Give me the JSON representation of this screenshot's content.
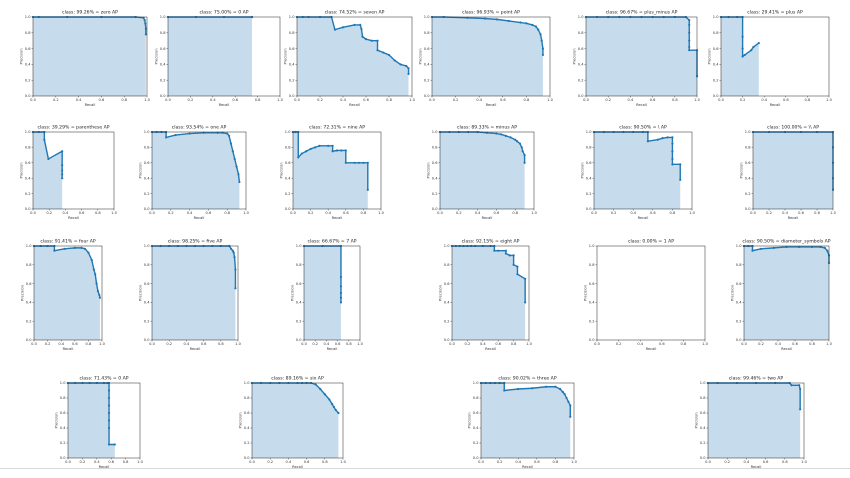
{
  "charts_page": {
    "xlabel": "Recall",
    "ylabel": "Precision"
  },
  "chart_data": [
    {
      "type": "line",
      "title": "class: 99.26% = zero AP",
      "xlabel": "Recall",
      "ylabel": "Precision",
      "xlim": [
        0,
        1
      ],
      "ylim": [
        0,
        1
      ],
      "series": [
        {
          "x": [
            0,
            0.05,
            0.3,
            0.6,
            0.9,
            0.97,
            0.98,
            0.985,
            0.99,
            0.99
          ],
          "y": [
            1,
            1,
            1,
            1,
            1,
            0.99,
            0.96,
            0.92,
            0.85,
            0.78
          ]
        }
      ]
    },
    {
      "type": "line",
      "title": "class: 75.00% = 0 AP",
      "xlabel": "Recall",
      "ylabel": "Precision",
      "xlim": [
        0,
        1
      ],
      "ylim": [
        0,
        1
      ],
      "series": [
        {
          "x": [
            0,
            0.25,
            0.5,
            0.75,
            0.75
          ],
          "y": [
            1,
            1,
            1,
            1,
            1
          ]
        }
      ]
    },
    {
      "type": "line",
      "title": "class: 74.52% = seven AP",
      "xlabel": "Recall",
      "ylabel": "Precision",
      "xlim": [
        0,
        1
      ],
      "ylim": [
        0,
        1
      ],
      "series": [
        {
          "x": [
            0,
            0.05,
            0.1,
            0.2,
            0.3,
            0.33,
            0.4,
            0.5,
            0.55,
            0.56,
            0.57,
            0.6,
            0.65,
            0.7,
            0.7,
            0.75,
            0.8,
            0.85,
            0.9,
            0.95,
            0.97,
            0.97
          ],
          "y": [
            1,
            1,
            1,
            1,
            1,
            0.84,
            0.87,
            0.9,
            0.9,
            0.85,
            0.75,
            0.72,
            0.7,
            0.7,
            0.58,
            0.55,
            0.52,
            0.45,
            0.4,
            0.38,
            0.35,
            0.28
          ]
        }
      ]
    },
    {
      "type": "line",
      "title": "class: 96.93% = point AP",
      "xlabel": "Recall",
      "ylabel": "Precision",
      "xlim": [
        0,
        1
      ],
      "ylim": [
        0,
        1
      ],
      "series": [
        {
          "x": [
            0,
            0.1,
            0.3,
            0.45,
            0.55,
            0.65,
            0.75,
            0.8,
            0.85,
            0.88,
            0.9,
            0.92,
            0.93,
            0.94,
            0.94
          ],
          "y": [
            1,
            1,
            0.99,
            0.98,
            0.97,
            0.95,
            0.93,
            0.92,
            0.9,
            0.88,
            0.84,
            0.78,
            0.7,
            0.6,
            0.52
          ]
        }
      ]
    },
    {
      "type": "line",
      "title": "class: 96.67% = plus_minus AP",
      "xlabel": "Recall",
      "ylabel": "Precision",
      "xlim": [
        0,
        1
      ],
      "ylim": [
        0,
        1
      ],
      "series": [
        {
          "x": [
            0,
            0.1,
            0.2,
            0.3,
            0.4,
            0.5,
            0.6,
            0.7,
            0.8,
            0.9,
            0.93,
            0.93,
            0.93,
            0.93,
            0.93,
            0.93,
            1.0,
            1.0
          ],
          "y": [
            1,
            1,
            1,
            1,
            1,
            1,
            1,
            1,
            1,
            1,
            0.96,
            0.9,
            0.8,
            0.7,
            0.62,
            0.58,
            0.58,
            0.25
          ]
        }
      ]
    },
    {
      "type": "line",
      "title": "class: 29.41% = plus AP",
      "xlabel": "Recall",
      "ylabel": "Precision",
      "xlim": [
        0,
        1
      ],
      "ylim": [
        0,
        1
      ],
      "series": [
        {
          "x": [
            0,
            0.07,
            0.15,
            0.2,
            0.2,
            0.2,
            0.2,
            0.22,
            0.28,
            0.3,
            0.35
          ],
          "y": [
            1,
            1,
            1,
            1,
            0.75,
            0.6,
            0.5,
            0.52,
            0.58,
            0.62,
            0.67
          ]
        }
      ]
    },
    {
      "type": "line",
      "title": "class: 39.29% = parenthese AP",
      "xlabel": "Recall",
      "ylabel": "Precision",
      "xlim": [
        0,
        1
      ],
      "ylim": [
        0,
        1
      ],
      "series": [
        {
          "x": [
            0,
            0.07,
            0.14,
            0.14,
            0.19,
            0.36,
            0.36,
            0.36,
            0.36,
            0.36
          ],
          "y": [
            1,
            1,
            1,
            0.9,
            0.65,
            0.75,
            0.57,
            0.5,
            0.45,
            0.4
          ]
        }
      ]
    },
    {
      "type": "line",
      "title": "class: 93.54% = one AP",
      "xlabel": "Recall",
      "ylabel": "Precision",
      "xlim": [
        0,
        1
      ],
      "ylim": [
        0,
        1
      ],
      "series": [
        {
          "x": [
            0,
            0.05,
            0.1,
            0.15,
            0.15,
            0.25,
            0.4,
            0.55,
            0.7,
            0.75,
            0.8,
            0.82,
            0.84,
            0.86,
            0.88,
            0.9,
            0.92,
            0.93
          ],
          "y": [
            1,
            1,
            1,
            1,
            0.93,
            0.96,
            0.98,
            0.99,
            0.99,
            0.99,
            0.98,
            0.95,
            0.85,
            0.75,
            0.65,
            0.55,
            0.45,
            0.35
          ]
        }
      ]
    },
    {
      "type": "line",
      "title": "class: 72.31% = nine AP",
      "xlabel": "Recall",
      "ylabel": "Precision",
      "xlim": [
        0,
        1
      ],
      "ylim": [
        0,
        1
      ],
      "series": [
        {
          "x": [
            0,
            0.03,
            0.06,
            0.06,
            0.1,
            0.15,
            0.2,
            0.25,
            0.3,
            0.4,
            0.45,
            0.45,
            0.5,
            0.55,
            0.6,
            0.6,
            0.7,
            0.75,
            0.8,
            0.85,
            0.85
          ],
          "y": [
            1,
            1,
            1,
            0.67,
            0.72,
            0.75,
            0.78,
            0.8,
            0.82,
            0.82,
            0.82,
            0.75,
            0.76,
            0.76,
            0.76,
            0.6,
            0.6,
            0.6,
            0.6,
            0.6,
            0.25
          ]
        }
      ]
    },
    {
      "type": "line",
      "title": "class: 89.33% = minus AP",
      "xlabel": "Recall",
      "ylabel": "Precision",
      "xlim": [
        0,
        1
      ],
      "ylim": [
        0,
        1
      ],
      "series": [
        {
          "x": [
            0,
            0.1,
            0.2,
            0.3,
            0.4,
            0.5,
            0.6,
            0.65,
            0.7,
            0.75,
            0.8,
            0.82,
            0.85,
            0.87,
            0.88,
            0.9,
            0.9
          ],
          "y": [
            1,
            1,
            1,
            1,
            1,
            0.99,
            0.98,
            0.97,
            0.95,
            0.93,
            0.9,
            0.88,
            0.85,
            0.8,
            0.75,
            0.7,
            0.6
          ]
        }
      ]
    },
    {
      "type": "line",
      "title": "class: 90.50% = \\ AP",
      "xlabel": "Recall",
      "ylabel": "Precision",
      "xlim": [
        0,
        1
      ],
      "ylim": [
        0,
        1
      ],
      "series": [
        {
          "x": [
            0,
            0.1,
            0.2,
            0.3,
            0.4,
            0.5,
            0.55,
            0.55,
            0.65,
            0.7,
            0.75,
            0.8,
            0.8,
            0.8,
            0.8,
            0.8,
            0.88,
            0.88
          ],
          "y": [
            1,
            1,
            1,
            1,
            1,
            1,
            1,
            0.88,
            0.9,
            0.92,
            0.93,
            0.93,
            0.85,
            0.75,
            0.65,
            0.58,
            0.58,
            0.38
          ]
        }
      ]
    },
    {
      "type": "line",
      "title": "class: 100.00% = \\\\ AP",
      "xlabel": "Recall",
      "ylabel": "Precision",
      "xlim": [
        0,
        1
      ],
      "ylim": [
        0,
        1
      ],
      "series": [
        {
          "x": [
            0,
            0.2,
            0.4,
            0.6,
            0.8,
            1.0,
            1.0,
            1.0,
            1.0,
            1.0
          ],
          "y": [
            1,
            1,
            1,
            1,
            1,
            1,
            0.8,
            0.6,
            0.4,
            0.25
          ]
        }
      ]
    },
    {
      "type": "line",
      "title": "class: 91.41% = four AP",
      "xlabel": "Recall",
      "ylabel": "Precision",
      "xlim": [
        0,
        1
      ],
      "ylim": [
        0,
        1
      ],
      "series": [
        {
          "x": [
            0,
            0.1,
            0.2,
            0.3,
            0.3,
            0.45,
            0.6,
            0.7,
            0.75,
            0.8,
            0.85,
            0.88,
            0.9,
            0.92,
            0.94,
            0.96,
            0.97
          ],
          "y": [
            1,
            1,
            1,
            1,
            0.95,
            0.97,
            0.98,
            0.98,
            0.97,
            0.93,
            0.85,
            0.75,
            0.7,
            0.6,
            0.52,
            0.48,
            0.45
          ]
        }
      ]
    },
    {
      "type": "line",
      "title": "class: 98.25% = five AP",
      "xlabel": "Recall",
      "ylabel": "Precision",
      "xlim": [
        0,
        1
      ],
      "ylim": [
        0,
        1
      ],
      "series": [
        {
          "x": [
            0,
            0.1,
            0.2,
            0.3,
            0.4,
            0.5,
            0.6,
            0.7,
            0.8,
            0.9,
            0.92,
            0.94,
            0.95,
            0.96,
            0.97,
            0.97
          ],
          "y": [
            1,
            1,
            1,
            1,
            1,
            1,
            1,
            1,
            1,
            1,
            0.97,
            0.95,
            0.93,
            0.88,
            0.75,
            0.55
          ]
        }
      ]
    },
    {
      "type": "line",
      "title": "class: 66.67% = 7 AP",
      "xlabel": "Recall",
      "ylabel": "Precision",
      "xlim": [
        0,
        1
      ],
      "ylim": [
        0,
        1
      ],
      "series": [
        {
          "x": [
            0,
            0.33,
            0.66,
            0.66,
            0.66,
            0.66,
            0.66,
            0.66
          ],
          "y": [
            1,
            1,
            1,
            0.67,
            0.57,
            0.5,
            0.45,
            0.4
          ]
        }
      ]
    },
    {
      "type": "line",
      "title": "class: 92.15% = eight AP",
      "xlabel": "Recall",
      "ylabel": "Precision",
      "xlim": [
        0,
        1
      ],
      "ylim": [
        0,
        1
      ],
      "series": [
        {
          "x": [
            0,
            0.05,
            0.1,
            0.15,
            0.2,
            0.25,
            0.3,
            0.4,
            0.5,
            0.55,
            0.55,
            0.6,
            0.7,
            0.7,
            0.75,
            0.8,
            0.8,
            0.85,
            0.85,
            0.95,
            0.95
          ],
          "y": [
            1,
            1,
            1,
            1,
            1,
            1,
            1,
            1,
            1,
            1,
            0.95,
            0.95,
            0.95,
            0.92,
            0.9,
            0.9,
            0.8,
            0.78,
            0.7,
            0.65,
            0.4
          ]
        }
      ]
    },
    {
      "type": "line",
      "title": "class: 0.00% = 1 AP",
      "xlabel": "Recall",
      "ylabel": "Precision",
      "xlim": [
        0,
        1
      ],
      "ylim": [
        0,
        1
      ],
      "series": [
        {
          "x": [],
          "y": []
        }
      ]
    },
    {
      "type": "line",
      "title": "class: 90.50% = diameter_symbols AP",
      "xlabel": "Recall",
      "ylabel": "Precision",
      "xlim": [
        0,
        1
      ],
      "ylim": [
        0,
        1
      ],
      "series": [
        {
          "x": [
            0,
            0.05,
            0.1,
            0.1,
            0.2,
            0.35,
            0.5,
            0.65,
            0.8,
            0.9,
            0.95,
            0.98,
            1.0,
            1.0
          ],
          "y": [
            1,
            1,
            1,
            0.95,
            0.97,
            0.98,
            0.99,
            0.99,
            0.99,
            0.99,
            0.98,
            0.95,
            0.9,
            0.82
          ]
        }
      ]
    },
    {
      "type": "line",
      "title": "class: 71.43% = 0 AP",
      "xlabel": "Recall",
      "ylabel": "Precision",
      "xlim": [
        0,
        1
      ],
      "ylim": [
        0,
        1
      ],
      "series": [
        {
          "x": [
            0,
            0.1,
            0.2,
            0.3,
            0.4,
            0.5,
            0.55,
            0.57,
            0.57,
            0.57,
            0.57,
            0.57,
            0.57,
            0.57,
            0.57,
            0.65
          ],
          "y": [
            1,
            1,
            1,
            1,
            1,
            1,
            1,
            1,
            0.9,
            0.8,
            0.7,
            0.6,
            0.5,
            0.4,
            0.18,
            0.18
          ]
        }
      ]
    },
    {
      "type": "line",
      "title": "class: 89.16% = six AP",
      "xlabel": "Recall",
      "ylabel": "Precision",
      "xlim": [
        0,
        1
      ],
      "ylim": [
        0,
        1
      ],
      "series": [
        {
          "x": [
            0,
            0.1,
            0.2,
            0.3,
            0.4,
            0.5,
            0.55,
            0.6,
            0.65,
            0.7,
            0.75,
            0.8,
            0.85,
            0.88,
            0.9,
            0.92,
            0.95
          ],
          "y": [
            1,
            1,
            1,
            1,
            1,
            1,
            1,
            1,
            1,
            0.98,
            0.92,
            0.85,
            0.78,
            0.72,
            0.68,
            0.64,
            0.6
          ]
        }
      ]
    },
    {
      "type": "line",
      "title": "class: 90.02% = three AP",
      "xlabel": "Recall",
      "ylabel": "Precision",
      "xlim": [
        0,
        1
      ],
      "ylim": [
        0,
        1
      ],
      "series": [
        {
          "x": [
            0,
            0.05,
            0.1,
            0.15,
            0.2,
            0.25,
            0.25,
            0.4,
            0.55,
            0.7,
            0.8,
            0.85,
            0.88,
            0.9,
            0.92,
            0.94,
            0.96,
            0.96
          ],
          "y": [
            1,
            1,
            1,
            1,
            1,
            1,
            0.9,
            0.92,
            0.93,
            0.95,
            0.95,
            0.92,
            0.88,
            0.85,
            0.8,
            0.75,
            0.7,
            0.55
          ]
        }
      ]
    },
    {
      "type": "line",
      "title": "class: 99.46% = two AP",
      "xlabel": "Recall",
      "ylabel": "Precision",
      "xlim": [
        0,
        1
      ],
      "ylim": [
        0,
        1
      ],
      "series": [
        {
          "x": [
            0,
            0.1,
            0.3,
            0.5,
            0.7,
            0.85,
            0.87,
            0.95,
            0.96,
            0.96
          ],
          "y": [
            1,
            1,
            1,
            1,
            1,
            1,
            0.97,
            0.97,
            0.92,
            0.65
          ]
        }
      ]
    }
  ]
}
